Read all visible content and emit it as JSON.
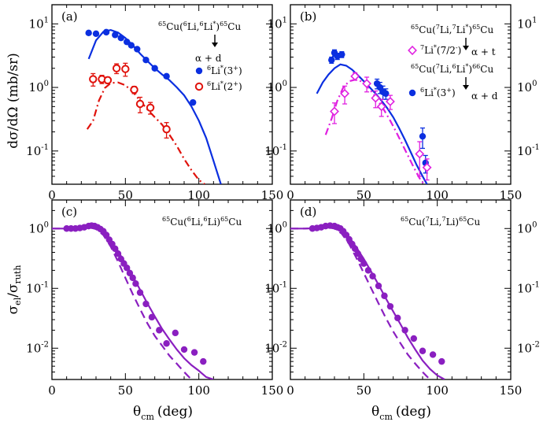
{
  "figure": {
    "xlabel_main": "θ",
    "xlabel_sub": "cm",
    "xlabel_unit": "(deg)",
    "ylabel_top": "dσ/dΩ (mb/sr)",
    "ylabel_bottom_main": "σ",
    "ylabel_bottom_sub1": "el",
    "ylabel_bottom_mid": "/σ",
    "ylabel_bottom_sub2": "ruth"
  },
  "colors": {
    "blue": "#0b2fe0",
    "red": "#e0120c",
    "magenta": "#e020e0",
    "purple": "#8a1fc0",
    "black": "#000000"
  },
  "chart_data": [
    {
      "id": "a",
      "type": "scatter",
      "panel_label": "(a)",
      "yscale": "log",
      "xlim": [
        0,
        150
      ],
      "ylim": [
        0.03,
        20
      ],
      "x_ticks": [
        "0",
        "50",
        "100",
        "150"
      ],
      "y_ticks": [
        {
          "base": "10",
          "exp": "-1"
        },
        {
          "base": "10",
          "exp": "0"
        },
        {
          "base": "10",
          "exp": "1"
        }
      ],
      "reaction": {
        "pre": "65",
        "a": "Cu(",
        "b": "6",
        "c": "Li,",
        "d": "6",
        "e": "Li",
        "f": "*",
        "g": ")",
        "h": "65",
        "i": "Cu"
      },
      "decay": "α + d",
      "legend": [
        {
          "name": "6Li*(3+)",
          "iso": "6",
          "base": "Li",
          "star": "*",
          "state": "(3",
          "parity": "+",
          "close": ")",
          "color": "blue",
          "marker": "filled-circle"
        },
        {
          "name": "6Li*(2+)",
          "iso": "6",
          "base": "Li",
          "star": "*",
          "state": "(2",
          "parity": "+",
          "close": ")",
          "color": "red",
          "marker": "open-circle"
        }
      ],
      "series": [
        {
          "name": "6Li*(3+) data",
          "color": "blue",
          "marker": "filled-circle",
          "x": [
            25,
            30,
            37,
            43,
            47,
            51,
            54,
            58,
            64,
            70,
            78
          ],
          "y": [
            7.2,
            7.0,
            7.4,
            6.7,
            6.0,
            5.2,
            4.6,
            4.0,
            2.7,
            2.0,
            1.5
          ]
        },
        {
          "name": "6Li*(3+) data (tail)",
          "color": "blue",
          "marker": "filled-circle",
          "x": [
            96
          ],
          "y": [
            0.58
          ]
        },
        {
          "name": "6Li*(2+) data",
          "color": "red",
          "marker": "open-circle",
          "x": [
            28,
            34,
            38,
            44,
            50,
            56,
            60,
            67,
            78
          ],
          "y": [
            1.35,
            1.35,
            1.3,
            2.0,
            1.95,
            0.92,
            0.55,
            0.48,
            0.22
          ],
          "yerr": [
            0.3,
            0.2,
            0.15,
            0.35,
            0.45,
            0.12,
            0.15,
            0.1,
            0.06
          ]
        }
      ],
      "curves": [
        {
          "name": "blue calc",
          "color": "blue",
          "style": "solid",
          "x": [
            25,
            30,
            35,
            40,
            45,
            50,
            55,
            60,
            65,
            70,
            75,
            80,
            85,
            90,
            95,
            100,
            105,
            110,
            115
          ],
          "y": [
            2.8,
            5.5,
            7.5,
            8.0,
            7.3,
            6.0,
            4.6,
            3.4,
            2.6,
            2.0,
            1.6,
            1.3,
            1.0,
            0.75,
            0.5,
            0.3,
            0.16,
            0.07,
            0.03
          ]
        },
        {
          "name": "red calc",
          "color": "red",
          "style": "dash-dot",
          "x": [
            24,
            28,
            32,
            36,
            40,
            45,
            50,
            55,
            60,
            65,
            70,
            75,
            80,
            85,
            90,
            95,
            100,
            104
          ],
          "y": [
            0.22,
            0.3,
            0.62,
            0.98,
            1.17,
            1.2,
            1.08,
            0.85,
            0.62,
            0.45,
            0.34,
            0.26,
            0.18,
            0.12,
            0.075,
            0.05,
            0.035,
            0.03
          ]
        }
      ]
    },
    {
      "id": "b",
      "type": "scatter",
      "panel_label": "(b)",
      "yscale": "log",
      "xlim": [
        0,
        150
      ],
      "ylim": [
        0.03,
        20
      ],
      "x_ticks": [
        "0",
        "50",
        "100",
        "150"
      ],
      "y_ticks": [
        {
          "base": "10",
          "exp": "-1"
        },
        {
          "base": "10",
          "exp": "0"
        },
        {
          "base": "10",
          "exp": "1"
        }
      ],
      "reaction1": {
        "pre": "65",
        "a": "Cu(",
        "b": "7",
        "c": "Li,",
        "d": "7",
        "e": "Li",
        "f": "*",
        "g": ")",
        "h": "65",
        "i": "Cu"
      },
      "decay1": "α + t",
      "reaction2": {
        "pre": "65",
        "a": "Cu(",
        "b": "7",
        "c": "Li,",
        "d": "6",
        "e": "Li",
        "f": "*",
        "g": ")",
        "h": "66",
        "i": "Cu"
      },
      "decay2": "α + d",
      "legend": [
        {
          "name": "7Li*(7/2-)",
          "iso": "7",
          "base": "Li",
          "star": "*",
          "state": "(7/2",
          "parity": "-",
          "close": ")",
          "color": "magenta",
          "marker": "open-diamond"
        },
        {
          "name": "6Li*(3+)",
          "iso": "6",
          "base": "Li",
          "star": "*",
          "state": "(3",
          "parity": "+",
          "close": ")",
          "color": "blue",
          "marker": "filled-circle"
        }
      ],
      "series": [
        {
          "name": "6Li*(3+) data",
          "color": "blue",
          "marker": "filled-circle",
          "x": [
            28,
            30,
            32,
            35,
            59,
            61,
            63,
            65,
            90,
            92
          ],
          "y": [
            2.7,
            3.5,
            3.1,
            3.3,
            1.15,
            1.0,
            0.85,
            0.8,
            0.17,
            0.065
          ],
          "yerr": [
            0.3,
            0.4,
            0.35,
            0.35,
            0.2,
            0.2,
            0.2,
            0.15,
            0.06,
            0.02
          ]
        },
        {
          "name": "7Li*(7/2-) data",
          "color": "magenta",
          "marker": "open-diamond",
          "x": [
            30,
            37,
            44,
            52,
            58,
            62,
            68,
            88,
            93
          ],
          "y": [
            0.42,
            0.8,
            1.5,
            1.15,
            0.68,
            0.5,
            0.6,
            0.09,
            0.055
          ],
          "yerr": [
            0.15,
            0.25,
            0.2,
            0.3,
            0.2,
            0.15,
            0.15,
            0.05,
            0.02
          ]
        }
      ],
      "curves": [
        {
          "name": "blue calc",
          "color": "blue",
          "style": "solid",
          "x": [
            18,
            22,
            26,
            30,
            34,
            38,
            42,
            46,
            50,
            54,
            58,
            62,
            66,
            70,
            74,
            78,
            82,
            86,
            90,
            93
          ],
          "y": [
            0.8,
            1.2,
            1.6,
            2.0,
            2.3,
            2.2,
            1.9,
            1.55,
            1.25,
            1.0,
            0.8,
            0.62,
            0.47,
            0.34,
            0.23,
            0.15,
            0.095,
            0.06,
            0.04,
            0.03
          ]
        },
        {
          "name": "magenta calc",
          "color": "magenta",
          "style": "dash-dot",
          "x": [
            24,
            28,
            32,
            36,
            40,
            44,
            48,
            52,
            56,
            60,
            64,
            68,
            72,
            76,
            80,
            84,
            88,
            91
          ],
          "y": [
            0.18,
            0.32,
            0.62,
            1.0,
            1.25,
            1.32,
            1.25,
            1.05,
            0.82,
            0.6,
            0.43,
            0.3,
            0.2,
            0.13,
            0.085,
            0.055,
            0.037,
            0.03
          ]
        }
      ]
    },
    {
      "id": "c",
      "type": "scatter",
      "panel_label": "(c)",
      "yscale": "log",
      "xlim": [
        0,
        150
      ],
      "ylim": [
        0.003,
        3
      ],
      "x_ticks": [
        "0",
        "50",
        "100",
        "150"
      ],
      "y_ticks": [
        {
          "base": "10",
          "exp": "-2"
        },
        {
          "base": "10",
          "exp": "-1"
        },
        {
          "base": "10",
          "exp": "0"
        }
      ],
      "reaction": {
        "pre": "65",
        "a": "Cu(",
        "b": "6",
        "c": "Li,",
        "d": "6",
        "e": "Li",
        "f": "",
        "g": ")",
        "h": "65",
        "i": "Cu"
      },
      "series": [
        {
          "name": "elastic data",
          "color": "purple",
          "marker": "filled-circle",
          "x": [
            10,
            13,
            16,
            19,
            22,
            25,
            27,
            29,
            31,
            33,
            35,
            37,
            39,
            41,
            43,
            45,
            47,
            49,
            51,
            53,
            55,
            57,
            60,
            64,
            68,
            73,
            78,
            84,
            90,
            97,
            103
          ],
          "y": [
            1.0,
            1.0,
            1.0,
            1.02,
            1.05,
            1.1,
            1.12,
            1.1,
            1.05,
            0.98,
            0.9,
            0.78,
            0.65,
            0.55,
            0.46,
            0.38,
            0.31,
            0.26,
            0.22,
            0.18,
            0.15,
            0.12,
            0.085,
            0.055,
            0.033,
            0.02,
            0.012,
            0.018,
            0.0095,
            0.0085,
            0.006
          ]
        }
      ],
      "curves": [
        {
          "name": "full calc",
          "color": "purple",
          "style": "solid",
          "x": [
            0,
            10,
            20,
            25,
            30,
            35,
            40,
            45,
            50,
            55,
            60,
            65,
            70,
            75,
            80,
            85,
            90,
            95,
            100,
            105,
            110
          ],
          "y": [
            1.0,
            1.0,
            1.03,
            1.08,
            1.05,
            0.9,
            0.65,
            0.42,
            0.26,
            0.16,
            0.095,
            0.056,
            0.034,
            0.021,
            0.014,
            0.0095,
            0.0068,
            0.0052,
            0.0042,
            0.0033,
            0.003
          ]
        },
        {
          "name": "no-coupling calc",
          "color": "purple",
          "style": "dashed",
          "x": [
            0,
            10,
            20,
            25,
            30,
            35,
            40,
            45,
            50,
            55,
            60,
            65,
            70,
            75,
            80,
            85,
            90,
            95
          ],
          "y": [
            1.0,
            1.0,
            1.02,
            1.05,
            0.98,
            0.78,
            0.5,
            0.28,
            0.15,
            0.08,
            0.045,
            0.026,
            0.016,
            0.011,
            0.0075,
            0.0055,
            0.004,
            0.003
          ]
        }
      ]
    },
    {
      "id": "d",
      "type": "scatter",
      "panel_label": "(d)",
      "yscale": "log",
      "xlim": [
        0,
        150
      ],
      "ylim": [
        0.003,
        3
      ],
      "x_ticks": [
        "0",
        "50",
        "100",
        "150"
      ],
      "y_ticks": [
        {
          "base": "10",
          "exp": "-2"
        },
        {
          "base": "10",
          "exp": "-1"
        },
        {
          "base": "10",
          "exp": "0"
        }
      ],
      "reaction": {
        "pre": "65",
        "a": "Cu(",
        "b": "7",
        "c": "Li,",
        "d": "7",
        "e": "Li",
        "f": "",
        "g": ")",
        "h": "65",
        "i": "Cu"
      },
      "series": [
        {
          "name": "elastic data",
          "color": "purple",
          "marker": "filled-circle",
          "x": [
            15,
            18,
            21,
            24,
            27,
            30,
            32,
            34,
            36,
            38,
            40,
            42,
            44,
            46,
            48,
            50,
            53,
            56,
            60,
            64,
            68,
            73,
            78,
            84,
            90,
            97,
            103
          ],
          "y": [
            1.0,
            1.02,
            1.05,
            1.1,
            1.12,
            1.1,
            1.05,
            1.0,
            0.9,
            0.78,
            0.66,
            0.55,
            0.46,
            0.38,
            0.31,
            0.26,
            0.2,
            0.16,
            0.11,
            0.075,
            0.05,
            0.032,
            0.02,
            0.0145,
            0.009,
            0.0078,
            0.006
          ]
        }
      ],
      "curves": [
        {
          "name": "full calc",
          "color": "purple",
          "style": "solid",
          "x": [
            0,
            10,
            20,
            25,
            30,
            35,
            40,
            45,
            50,
            55,
            60,
            65,
            70,
            75,
            80,
            85,
            90,
            95,
            100,
            105
          ],
          "y": [
            1.0,
            1.0,
            1.03,
            1.08,
            1.07,
            0.95,
            0.72,
            0.48,
            0.31,
            0.19,
            0.115,
            0.068,
            0.041,
            0.025,
            0.015,
            0.0095,
            0.0062,
            0.0045,
            0.0035,
            0.003
          ]
        },
        {
          "name": "no-coupling calc",
          "color": "purple",
          "style": "dashed",
          "x": [
            0,
            10,
            20,
            25,
            30,
            35,
            40,
            45,
            50,
            55,
            60,
            65,
            70,
            75,
            80,
            85,
            90,
            95
          ],
          "y": [
            1.0,
            1.0,
            1.02,
            1.05,
            1.0,
            0.82,
            0.55,
            0.32,
            0.18,
            0.1,
            0.056,
            0.032,
            0.019,
            0.012,
            0.0078,
            0.0055,
            0.004,
            0.003
          ]
        }
      ]
    }
  ]
}
